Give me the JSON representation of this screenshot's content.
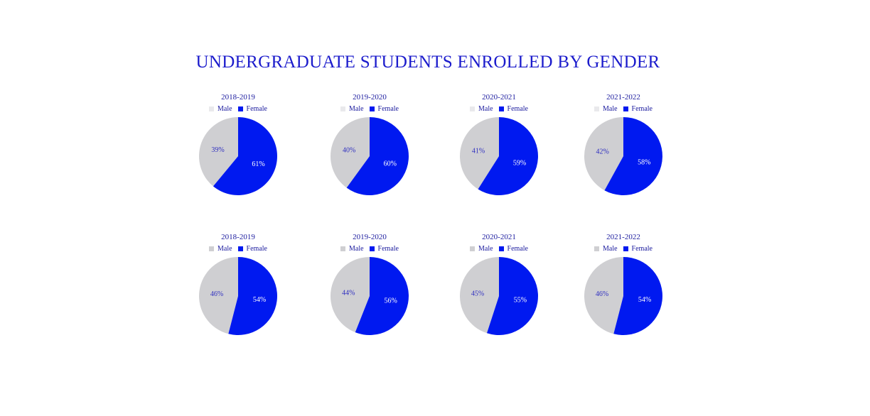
{
  "title": "UNDERGRADUATE STUDENTS ENROLLED BY GENDER",
  "colors": {
    "title": "#1c1ccc",
    "text": "#1a1a9e",
    "male": "#cfcfd2",
    "male_light": "#e9e9ec",
    "female": "#0019f0",
    "label_male": "#3030c0",
    "label_female": "#ffffff"
  },
  "chart_data": [
    {
      "type": "pie",
      "title": "2018-2019",
      "labels": [
        "Male",
        "Female"
      ],
      "values": [
        39,
        61
      ],
      "value_labels": [
        "39%",
        "61%"
      ]
    },
    {
      "type": "pie",
      "title": "2019-2020",
      "labels": [
        "Male",
        "Female"
      ],
      "values": [
        40,
        60
      ],
      "value_labels": [
        "40%",
        "60%"
      ]
    },
    {
      "type": "pie",
      "title": "2020-2021",
      "labels": [
        "Male",
        "Female"
      ],
      "values": [
        41,
        59
      ],
      "value_labels": [
        "41%",
        "59%"
      ]
    },
    {
      "type": "pie",
      "title": "2021-2022",
      "labels": [
        "Male",
        "Female"
      ],
      "values": [
        42,
        58
      ],
      "value_labels": [
        "42%",
        "58%"
      ]
    },
    {
      "type": "pie",
      "title": "2018-2019",
      "labels": [
        "Male",
        "Female"
      ],
      "values": [
        46,
        54
      ],
      "value_labels": [
        "46%",
        "54%"
      ]
    },
    {
      "type": "pie",
      "title": "2019-2020",
      "labels": [
        "Male",
        "Female"
      ],
      "values": [
        44,
        56
      ],
      "value_labels": [
        "44%",
        "56%"
      ]
    },
    {
      "type": "pie",
      "title": "2020-2021",
      "labels": [
        "Male",
        "Female"
      ],
      "values": [
        45,
        55
      ],
      "value_labels": [
        "45%",
        "55%"
      ]
    },
    {
      "type": "pie",
      "title": "2021-2022",
      "labels": [
        "Male",
        "Female"
      ],
      "values": [
        46,
        54
      ],
      "value_labels": [
        "46%",
        "54%"
      ]
    }
  ]
}
